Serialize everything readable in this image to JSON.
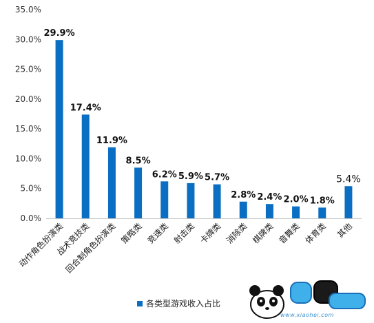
{
  "chart_data": {
    "type": "bar",
    "categories": [
      "动作角色扮演类",
      "战术竞技类",
      "回合制角色扮演类",
      "策略类",
      "竞速类",
      "射击类",
      "卡牌类",
      "消除类",
      "棋牌类",
      "音舞类",
      "体育类",
      "其他"
    ],
    "series": [
      {
        "name": "各类型游戏收入占比",
        "values": [
          29.9,
          17.4,
          11.9,
          8.5,
          6.2,
          5.9,
          5.7,
          2.8,
          2.4,
          2.0,
          1.8,
          5.4
        ]
      }
    ],
    "data_labels": [
      "29.9%",
      "17.4%",
      "11.9%",
      "8.5%",
      "6.2%",
      "5.9%",
      "5.7%",
      "2.8%",
      "2.4%",
      "2.0%",
      "1.8%",
      "5.4%"
    ],
    "bold_labels": [
      true,
      true,
      true,
      true,
      true,
      true,
      true,
      true,
      true,
      true,
      true,
      false
    ],
    "y_ticks": [
      "0.0%",
      "5.0%",
      "10.0%",
      "15.0%",
      "20.0%",
      "25.0%",
      "30.0%",
      "35.0%"
    ],
    "ylim": [
      0,
      35
    ],
    "grid": false,
    "legend_position": "bottom",
    "bar_color": "#0a6fc2"
  },
  "legend": {
    "label": "各类型游戏收入占比"
  },
  "watermark": {
    "url": "www.xiaohei.com"
  }
}
